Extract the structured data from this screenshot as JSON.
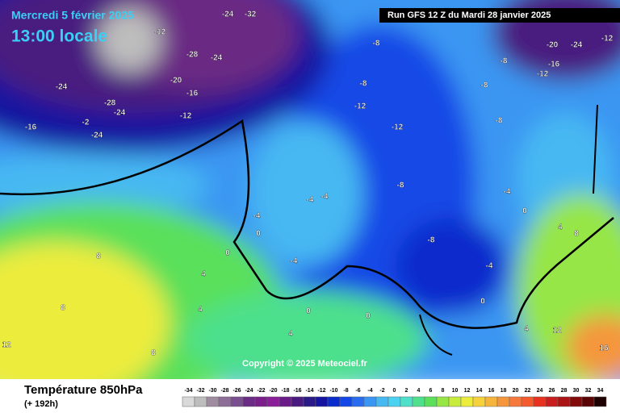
{
  "header": {
    "date": "Mercredi 5 février 2025",
    "time": "13:00 locale",
    "run": "Run GFS 12 Z du Mardi 28 janvier 2025"
  },
  "copyright": "Copyright © 2025 Meteociel.fr",
  "footer": {
    "title": "Température 850hPa",
    "lead": "(+ 192h)"
  },
  "legend": {
    "values": [
      -34,
      -32,
      -30,
      -28,
      -26,
      -24,
      -22,
      -20,
      -18,
      -16,
      -14,
      -12,
      -10,
      -8,
      -6,
      -4,
      -2,
      0,
      2,
      4,
      6,
      8,
      10,
      12,
      14,
      16,
      18,
      20,
      22,
      24,
      26,
      28,
      30,
      32,
      34
    ],
    "colors": [
      "#d9d9d9",
      "#bdbdbd",
      "#a08ca0",
      "#8c6e96",
      "#7a4f8f",
      "#6a2c84",
      "#7a1f8c",
      "#8c1e99",
      "#6b1a8a",
      "#4a1a80",
      "#2a1a88",
      "#1414a0",
      "#0a2ccc",
      "#1448e6",
      "#2a6cf0",
      "#3a96f2",
      "#46b8f2",
      "#4ad2f0",
      "#4ee0c8",
      "#4ee08c",
      "#5ae05a",
      "#96e646",
      "#c8ec3c",
      "#ecec3c",
      "#f5d23c",
      "#f5b43c",
      "#f5963c",
      "#f5783c",
      "#f55a2d",
      "#e6321e",
      "#c81e1e",
      "#aa1414",
      "#820a0a",
      "#5a0505",
      "#1e0000"
    ]
  },
  "contour_labels": [
    -24,
    -32,
    -24,
    -28,
    -20,
    -16,
    -12,
    -24,
    -28,
    -24,
    -16,
    -24,
    -12,
    -8,
    -8,
    -12,
    -12,
    -8,
    -8,
    -12,
    -16,
    -20,
    -24,
    -12,
    -8,
    -4,
    -4,
    -4,
    0,
    0,
    4,
    8,
    8,
    4,
    4,
    0,
    0,
    -8,
    -4,
    0,
    4,
    8,
    12,
    16,
    12,
    8,
    -4,
    -8,
    -4,
    0,
    4,
    -2
  ]
}
